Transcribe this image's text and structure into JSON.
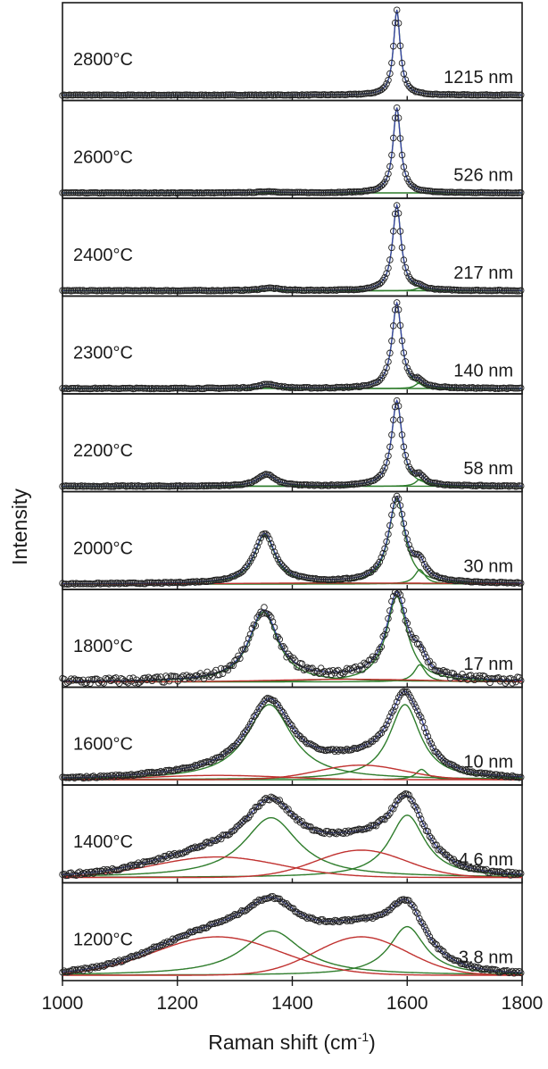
{
  "chart_data": {
    "type": "line",
    "title": "",
    "xlabel": "Raman shift (cm",
    "xlabel_superscript": "-1",
    "xlabel_suffix": ")",
    "ylabel": "Intensity",
    "xlim": [
      1000,
      1800
    ],
    "x_ticks": [
      1000,
      1200,
      1400,
      1600,
      1800
    ],
    "grid": false,
    "legend": "none",
    "colors": {
      "data_points": "#222222",
      "total_fit": "#3a44a8",
      "graphitic_bands": "#2f7d2c",
      "disorder_bands": "#c0312f"
    },
    "panels": [
      {
        "temperature": "2800°C",
        "size": "1215 nm",
        "bands": [
          {
            "center": 1582,
            "width": 7,
            "height": 1.0,
            "shape": "lorentz",
            "kind": "g"
          }
        ],
        "noise": 0.004
      },
      {
        "temperature": "2600°C",
        "size": "526 nm",
        "bands": [
          {
            "center": 1582,
            "width": 8,
            "height": 1.0,
            "shape": "lorentz",
            "kind": "g"
          },
          {
            "center": 1360,
            "width": 20,
            "height": 0.015,
            "shape": "lorentz",
            "kind": "g"
          }
        ],
        "noise": 0.004
      },
      {
        "temperature": "2400°C",
        "size": "217 nm",
        "bands": [
          {
            "center": 1582,
            "width": 9,
            "height": 1.0,
            "shape": "lorentz",
            "kind": "g"
          },
          {
            "center": 1360,
            "width": 20,
            "height": 0.03,
            "shape": "lorentz",
            "kind": "g"
          },
          {
            "center": 1620,
            "width": 8,
            "height": 0.03,
            "shape": "lorentz",
            "kind": "g"
          }
        ],
        "noise": 0.005
      },
      {
        "temperature": "2300°C",
        "size": "140 nm",
        "bands": [
          {
            "center": 1582,
            "width": 10,
            "height": 1.0,
            "shape": "lorentz",
            "kind": "g"
          },
          {
            "center": 1358,
            "width": 18,
            "height": 0.05,
            "shape": "lorentz",
            "kind": "g"
          },
          {
            "center": 1620,
            "width": 8,
            "height": 0.06,
            "shape": "lorentz",
            "kind": "g"
          }
        ],
        "noise": 0.006
      },
      {
        "temperature": "2200°C",
        "size": "58 nm",
        "bands": [
          {
            "center": 1582,
            "width": 11,
            "height": 1.0,
            "shape": "lorentz",
            "kind": "g"
          },
          {
            "center": 1355,
            "width": 18,
            "height": 0.14,
            "shape": "lorentz",
            "kind": "g"
          },
          {
            "center": 1622,
            "width": 9,
            "height": 0.08,
            "shape": "lorentz",
            "kind": "g"
          }
        ],
        "noise": 0.006
      },
      {
        "temperature": "2000°C",
        "size": "30 nm",
        "bands": [
          {
            "center": 1582,
            "width": 17,
            "height": 1.0,
            "shape": "lorentz",
            "kind": "g"
          },
          {
            "center": 1352,
            "width": 22,
            "height": 0.58,
            "shape": "lorentz",
            "kind": "g"
          },
          {
            "center": 1622,
            "width": 11,
            "height": 0.17,
            "shape": "lorentz",
            "kind": "g"
          },
          {
            "center": 1500,
            "width": 200,
            "height": 0.012,
            "shape": "gauss",
            "kind": "d"
          }
        ],
        "noise": 0.007
      },
      {
        "temperature": "1800°C",
        "size": "17 nm",
        "bands": [
          {
            "center": 1582,
            "width": 22,
            "height": 1.0,
            "shape": "lorentz",
            "kind": "g"
          },
          {
            "center": 1350,
            "width": 30,
            "height": 0.82,
            "shape": "lorentz",
            "kind": "g"
          },
          {
            "center": 1622,
            "width": 12,
            "height": 0.2,
            "shape": "lorentz",
            "kind": "g"
          },
          {
            "center": 1500,
            "width": 130,
            "height": 0.03,
            "shape": "gauss",
            "kind": "d"
          }
        ],
        "noise": 0.04
      },
      {
        "temperature": "1600°C",
        "size": "10 nm",
        "bands": [
          {
            "center": 1596,
            "width": 33,
            "height": 0.88,
            "shape": "lorentz",
            "kind": "g"
          },
          {
            "center": 1360,
            "width": 48,
            "height": 0.88,
            "shape": "lorentz",
            "kind": "g"
          },
          {
            "center": 1625,
            "width": 12,
            "height": 0.12,
            "shape": "lorentz",
            "kind": "g"
          },
          {
            "center": 1520,
            "width": 75,
            "height": 0.17,
            "shape": "gauss",
            "kind": "d"
          },
          {
            "center": 1270,
            "width": 110,
            "height": 0.05,
            "shape": "gauss",
            "kind": "d"
          }
        ],
        "noise": 0.012
      },
      {
        "temperature": "1400°C",
        "size": "4.6 nm",
        "bands": [
          {
            "center": 1600,
            "width": 38,
            "height": 0.73,
            "shape": "lorentz",
            "kind": "g"
          },
          {
            "center": 1363,
            "width": 58,
            "height": 0.7,
            "shape": "lorentz",
            "kind": "g"
          },
          {
            "center": 1520,
            "width": 78,
            "height": 0.32,
            "shape": "gauss",
            "kind": "d"
          },
          {
            "center": 1270,
            "width": 110,
            "height": 0.24,
            "shape": "gauss",
            "kind": "d"
          }
        ],
        "noise": 0.02
      },
      {
        "temperature": "1200°C",
        "size": "3.8 nm",
        "bands": [
          {
            "center": 1600,
            "width": 38,
            "height": 0.57,
            "shape": "lorentz",
            "kind": "g"
          },
          {
            "center": 1365,
            "width": 62,
            "height": 0.52,
            "shape": "lorentz",
            "kind": "g"
          },
          {
            "center": 1520,
            "width": 80,
            "height": 0.45,
            "shape": "gauss",
            "kind": "d"
          },
          {
            "center": 1270,
            "width": 110,
            "height": 0.45,
            "shape": "gauss",
            "kind": "d"
          }
        ],
        "noise": 0.015
      }
    ]
  }
}
